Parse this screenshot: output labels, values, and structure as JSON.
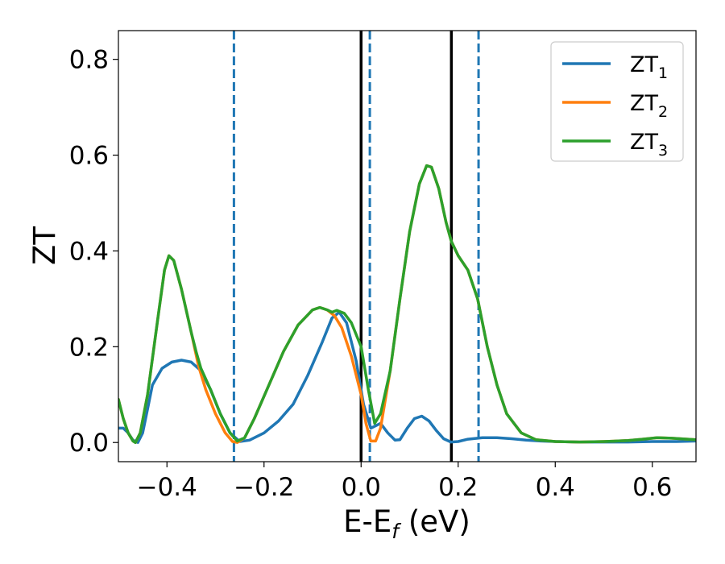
{
  "chart_data": {
    "type": "line",
    "title": "",
    "xlabel": "E-E",
    "xlabel_sub": "f",
    "xlabel_unit": " (eV)",
    "ylabel": "ZT",
    "xlim": [
      -0.5,
      0.69
    ],
    "ylim": [
      -0.04,
      0.86
    ],
    "grid": false,
    "legend_position": "top-right",
    "x_ticks": [
      -0.4,
      -0.2,
      0.0,
      0.2,
      0.4,
      0.6
    ],
    "x_tick_labels": [
      "−0.4",
      "−0.2",
      "0.0",
      "0.2",
      "0.4",
      "0.6"
    ],
    "y_ticks": [
      0.0,
      0.2,
      0.4,
      0.6,
      0.8
    ],
    "y_tick_labels": [
      "0.0",
      "0.2",
      "0.4",
      "0.6",
      "0.8"
    ],
    "vertical_lines": [
      {
        "x": 0.0,
        "style": "solid",
        "color": "#000000"
      },
      {
        "x": 0.186,
        "style": "solid",
        "color": "#000000"
      },
      {
        "x": -0.262,
        "style": "dashed",
        "color": "#1f77b4"
      },
      {
        "x": 0.018,
        "style": "dashed",
        "color": "#1f77b4"
      },
      {
        "x": 0.242,
        "style": "dashed",
        "color": "#1f77b4"
      }
    ],
    "series": [
      {
        "name": "ZT",
        "subscript": "1",
        "color": "#1f77b4",
        "points": [
          [
            -0.5,
            0.03
          ],
          [
            -0.49,
            0.03
          ],
          [
            -0.48,
            0.02
          ],
          [
            -0.47,
            0.005
          ],
          [
            -0.46,
            0.0
          ],
          [
            -0.45,
            0.02
          ],
          [
            -0.44,
            0.07
          ],
          [
            -0.43,
            0.12
          ],
          [
            -0.41,
            0.155
          ],
          [
            -0.39,
            0.168
          ],
          [
            -0.37,
            0.172
          ],
          [
            -0.35,
            0.168
          ],
          [
            -0.33,
            0.15
          ],
          [
            -0.31,
            0.11
          ],
          [
            -0.29,
            0.06
          ],
          [
            -0.27,
            0.02
          ],
          [
            -0.25,
            0.002
          ],
          [
            -0.23,
            0.005
          ],
          [
            -0.2,
            0.02
          ],
          [
            -0.17,
            0.045
          ],
          [
            -0.14,
            0.08
          ],
          [
            -0.11,
            0.14
          ],
          [
            -0.08,
            0.21
          ],
          [
            -0.06,
            0.26
          ],
          [
            -0.045,
            0.272
          ],
          [
            -0.03,
            0.25
          ],
          [
            -0.01,
            0.17
          ],
          [
            0.005,
            0.08
          ],
          [
            0.02,
            0.03
          ],
          [
            0.04,
            0.04
          ],
          [
            0.055,
            0.02
          ],
          [
            0.07,
            0.005
          ],
          [
            0.08,
            0.006
          ],
          [
            0.095,
            0.03
          ],
          [
            0.11,
            0.05
          ],
          [
            0.125,
            0.055
          ],
          [
            0.14,
            0.045
          ],
          [
            0.155,
            0.025
          ],
          [
            0.17,
            0.008
          ],
          [
            0.185,
            0.001
          ],
          [
            0.2,
            0.002
          ],
          [
            0.22,
            0.007
          ],
          [
            0.25,
            0.01
          ],
          [
            0.28,
            0.01
          ],
          [
            0.31,
            0.008
          ],
          [
            0.34,
            0.005
          ],
          [
            0.37,
            0.003
          ],
          [
            0.4,
            0.002
          ],
          [
            0.45,
            0.001
          ],
          [
            0.5,
            0.001
          ],
          [
            0.55,
            0.001
          ],
          [
            0.6,
            0.002
          ],
          [
            0.65,
            0.002
          ],
          [
            0.69,
            0.003
          ]
        ]
      },
      {
        "name": "ZT",
        "subscript": "2",
        "color": "#ff7f0e",
        "points": [
          [
            -0.5,
            0.09
          ],
          [
            -0.49,
            0.05
          ],
          [
            -0.48,
            0.02
          ],
          [
            -0.47,
            0.003
          ],
          [
            -0.465,
            0.0
          ],
          [
            -0.455,
            0.02
          ],
          [
            -0.44,
            0.1
          ],
          [
            -0.42,
            0.25
          ],
          [
            -0.405,
            0.36
          ],
          [
            -0.396,
            0.39
          ],
          [
            -0.386,
            0.38
          ],
          [
            -0.37,
            0.32
          ],
          [
            -0.35,
            0.23
          ],
          [
            -0.335,
            0.16
          ],
          [
            -0.32,
            0.11
          ],
          [
            -0.3,
            0.06
          ],
          [
            -0.28,
            0.02
          ],
          [
            -0.265,
            0.002
          ],
          [
            -0.255,
            0.0
          ],
          [
            -0.24,
            0.01
          ],
          [
            -0.22,
            0.05
          ],
          [
            -0.19,
            0.12
          ],
          [
            -0.16,
            0.19
          ],
          [
            -0.13,
            0.245
          ],
          [
            -0.1,
            0.277
          ],
          [
            -0.085,
            0.282
          ],
          [
            -0.07,
            0.277
          ],
          [
            -0.055,
            0.265
          ],
          [
            -0.04,
            0.24
          ],
          [
            -0.02,
            0.18
          ],
          [
            0.0,
            0.1
          ],
          [
            0.01,
            0.04
          ],
          [
            0.02,
            0.003
          ],
          [
            0.03,
            0.003
          ],
          [
            0.04,
            0.03
          ],
          [
            0.06,
            0.15
          ],
          [
            0.08,
            0.3
          ],
          [
            0.1,
            0.44
          ],
          [
            0.12,
            0.54
          ],
          [
            0.135,
            0.578
          ],
          [
            0.145,
            0.575
          ],
          [
            0.16,
            0.53
          ],
          [
            0.175,
            0.46
          ],
          [
            0.186,
            0.42
          ],
          [
            0.2,
            0.39
          ],
          [
            0.22,
            0.36
          ],
          [
            0.24,
            0.3
          ],
          [
            0.26,
            0.2
          ],
          [
            0.28,
            0.12
          ],
          [
            0.3,
            0.06
          ],
          [
            0.33,
            0.02
          ],
          [
            0.36,
            0.006
          ],
          [
            0.4,
            0.002
          ],
          [
            0.45,
            0.001
          ],
          [
            0.5,
            0.002
          ],
          [
            0.55,
            0.004
          ],
          [
            0.58,
            0.007
          ],
          [
            0.61,
            0.01
          ],
          [
            0.64,
            0.009
          ],
          [
            0.69,
            0.006
          ]
        ]
      },
      {
        "name": "ZT",
        "subscript": "3",
        "color": "#2ca02c",
        "points": [
          [
            -0.5,
            0.09
          ],
          [
            -0.49,
            0.05
          ],
          [
            -0.48,
            0.02
          ],
          [
            -0.47,
            0.003
          ],
          [
            -0.465,
            0.0
          ],
          [
            -0.455,
            0.02
          ],
          [
            -0.44,
            0.1
          ],
          [
            -0.42,
            0.25
          ],
          [
            -0.405,
            0.36
          ],
          [
            -0.396,
            0.39
          ],
          [
            -0.386,
            0.38
          ],
          [
            -0.37,
            0.32
          ],
          [
            -0.35,
            0.23
          ],
          [
            -0.34,
            0.19
          ],
          [
            -0.33,
            0.155
          ],
          [
            -0.31,
            0.11
          ],
          [
            -0.29,
            0.06
          ],
          [
            -0.27,
            0.02
          ],
          [
            -0.255,
            0.003
          ],
          [
            -0.24,
            0.01
          ],
          [
            -0.22,
            0.05
          ],
          [
            -0.19,
            0.12
          ],
          [
            -0.16,
            0.19
          ],
          [
            -0.13,
            0.245
          ],
          [
            -0.1,
            0.277
          ],
          [
            -0.085,
            0.282
          ],
          [
            -0.07,
            0.277
          ],
          [
            -0.06,
            0.272
          ],
          [
            -0.05,
            0.276
          ],
          [
            -0.035,
            0.27
          ],
          [
            -0.02,
            0.25
          ],
          [
            0.0,
            0.2
          ],
          [
            0.015,
            0.11
          ],
          [
            0.028,
            0.04
          ],
          [
            0.04,
            0.06
          ],
          [
            0.06,
            0.15
          ],
          [
            0.08,
            0.3
          ],
          [
            0.1,
            0.44
          ],
          [
            0.12,
            0.54
          ],
          [
            0.135,
            0.578
          ],
          [
            0.145,
            0.575
          ],
          [
            0.16,
            0.53
          ],
          [
            0.175,
            0.46
          ],
          [
            0.186,
            0.42
          ],
          [
            0.2,
            0.39
          ],
          [
            0.22,
            0.36
          ],
          [
            0.24,
            0.3
          ],
          [
            0.26,
            0.2
          ],
          [
            0.28,
            0.12
          ],
          [
            0.3,
            0.06
          ],
          [
            0.33,
            0.02
          ],
          [
            0.36,
            0.006
          ],
          [
            0.4,
            0.002
          ],
          [
            0.45,
            0.001
          ],
          [
            0.5,
            0.002
          ],
          [
            0.55,
            0.004
          ],
          [
            0.58,
            0.007
          ],
          [
            0.61,
            0.01
          ],
          [
            0.64,
            0.009
          ],
          [
            0.69,
            0.006
          ]
        ]
      }
    ]
  }
}
